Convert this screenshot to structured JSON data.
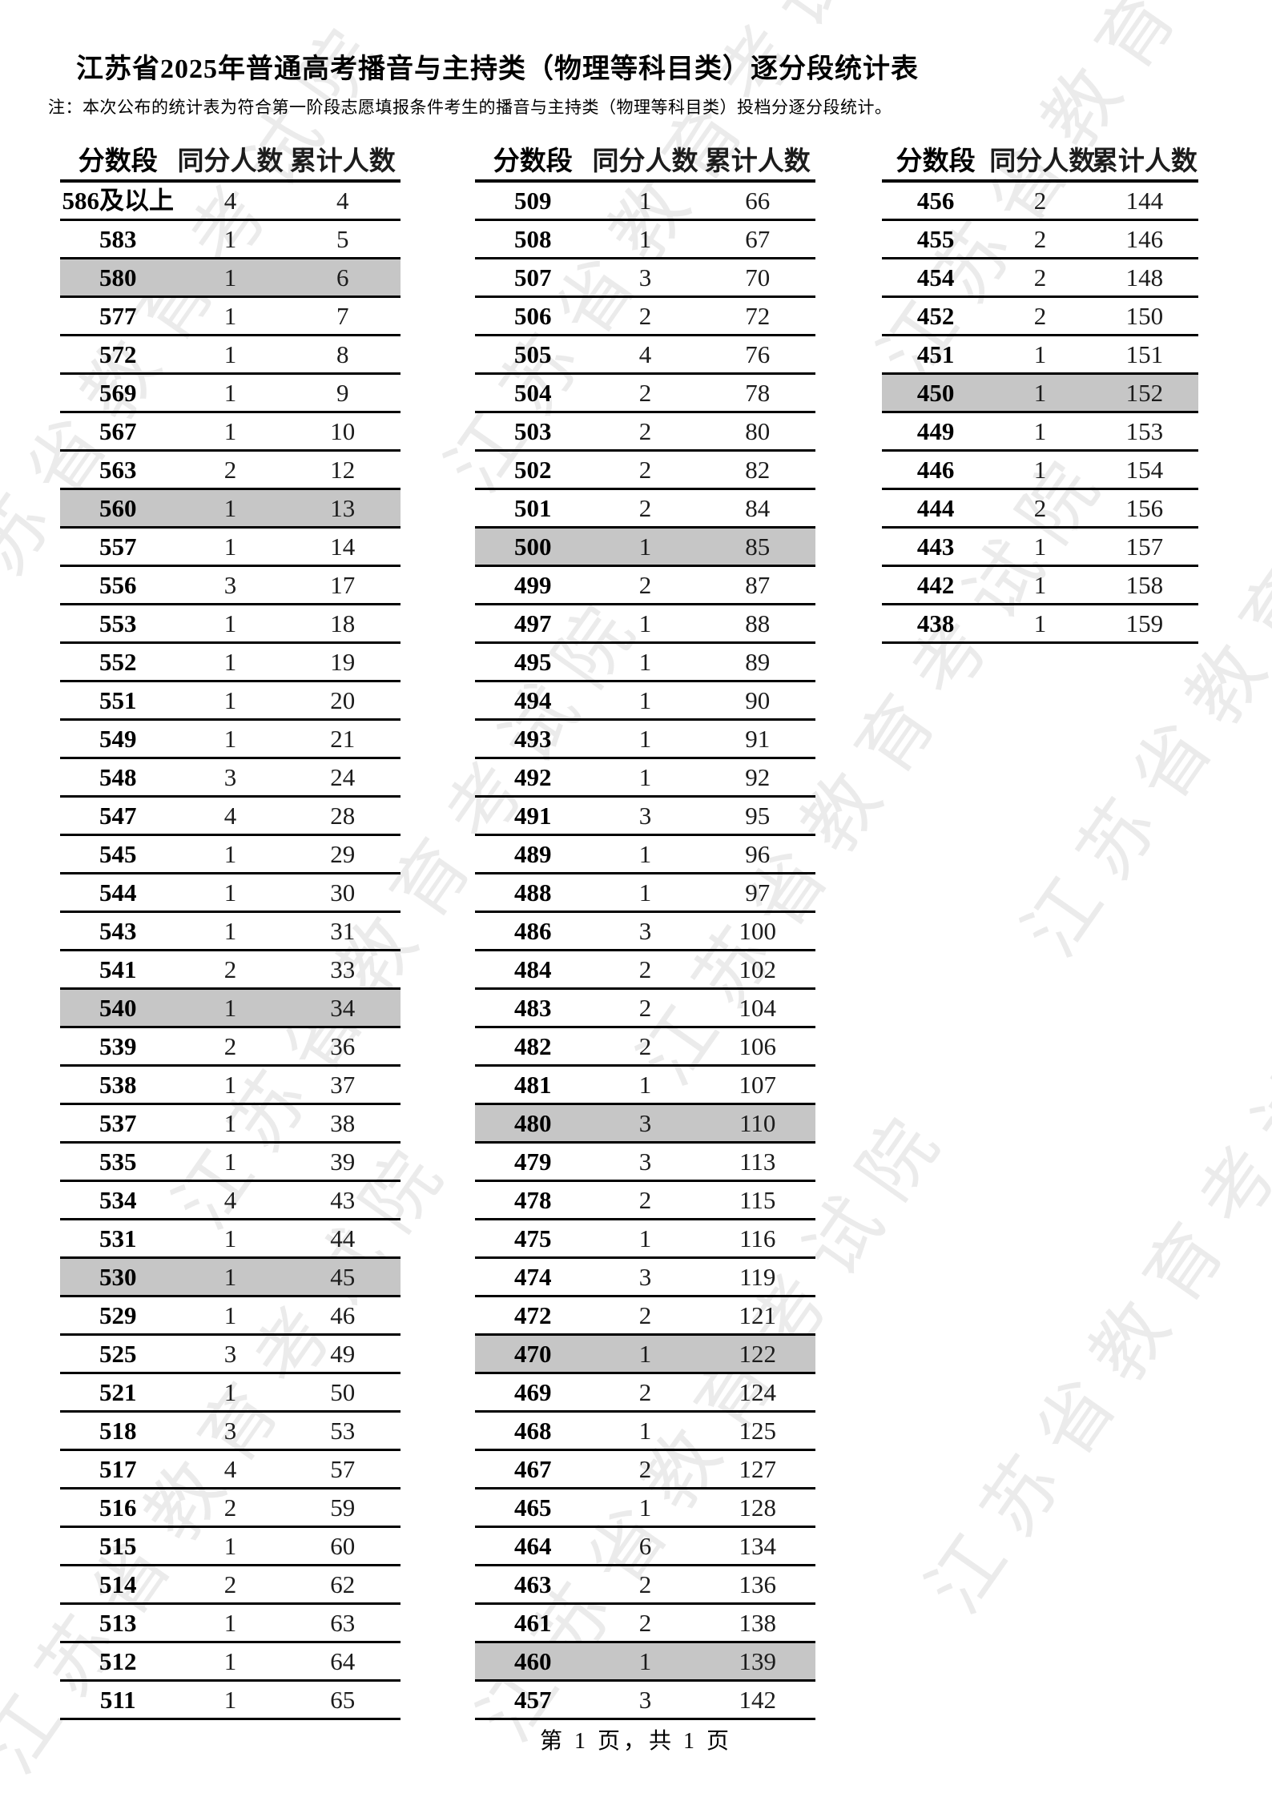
{
  "page": {
    "title": "江苏省2025年普通高考播音与主持类（物理等科目类）逐分段统计表",
    "note": "注：本次公布的统计表为符合第一阶段志愿填报条件考生的播音与主持类（物理等科目类）投档分逐分段统计。",
    "footer": "第 1 页，共 1 页",
    "watermark": "江苏省教育考试院"
  },
  "highlight_color": "#c6c6c6",
  "columns": [
    "分数段",
    "同分人数",
    "累计人数"
  ],
  "tables": [
    {
      "rows": [
        [
          "586及以上",
          "4",
          "4",
          0
        ],
        [
          "583",
          "1",
          "5",
          0
        ],
        [
          "580",
          "1",
          "6",
          1
        ],
        [
          "577",
          "1",
          "7",
          0
        ],
        [
          "572",
          "1",
          "8",
          0
        ],
        [
          "569",
          "1",
          "9",
          0
        ],
        [
          "567",
          "1",
          "10",
          0
        ],
        [
          "563",
          "2",
          "12",
          0
        ],
        [
          "560",
          "1",
          "13",
          1
        ],
        [
          "557",
          "1",
          "14",
          0
        ],
        [
          "556",
          "3",
          "17",
          0
        ],
        [
          "553",
          "1",
          "18",
          0
        ],
        [
          "552",
          "1",
          "19",
          0
        ],
        [
          "551",
          "1",
          "20",
          0
        ],
        [
          "549",
          "1",
          "21",
          0
        ],
        [
          "548",
          "3",
          "24",
          0
        ],
        [
          "547",
          "4",
          "28",
          0
        ],
        [
          "545",
          "1",
          "29",
          0
        ],
        [
          "544",
          "1",
          "30",
          0
        ],
        [
          "543",
          "1",
          "31",
          0
        ],
        [
          "541",
          "2",
          "33",
          0
        ],
        [
          "540",
          "1",
          "34",
          1
        ],
        [
          "539",
          "2",
          "36",
          0
        ],
        [
          "538",
          "1",
          "37",
          0
        ],
        [
          "537",
          "1",
          "38",
          0
        ],
        [
          "535",
          "1",
          "39",
          0
        ],
        [
          "534",
          "4",
          "43",
          0
        ],
        [
          "531",
          "1",
          "44",
          0
        ],
        [
          "530",
          "1",
          "45",
          1
        ],
        [
          "529",
          "1",
          "46",
          0
        ],
        [
          "525",
          "3",
          "49",
          0
        ],
        [
          "521",
          "1",
          "50",
          0
        ],
        [
          "518",
          "3",
          "53",
          0
        ],
        [
          "517",
          "4",
          "57",
          0
        ],
        [
          "516",
          "2",
          "59",
          0
        ],
        [
          "515",
          "1",
          "60",
          0
        ],
        [
          "514",
          "2",
          "62",
          0
        ],
        [
          "513",
          "1",
          "63",
          0
        ],
        [
          "512",
          "1",
          "64",
          0
        ],
        [
          "511",
          "1",
          "65",
          0
        ]
      ]
    },
    {
      "rows": [
        [
          "509",
          "1",
          "66",
          0
        ],
        [
          "508",
          "1",
          "67",
          0
        ],
        [
          "507",
          "3",
          "70",
          0
        ],
        [
          "506",
          "2",
          "72",
          0
        ],
        [
          "505",
          "4",
          "76",
          0
        ],
        [
          "504",
          "2",
          "78",
          0
        ],
        [
          "503",
          "2",
          "80",
          0
        ],
        [
          "502",
          "2",
          "82",
          0
        ],
        [
          "501",
          "2",
          "84",
          0
        ],
        [
          "500",
          "1",
          "85",
          1
        ],
        [
          "499",
          "2",
          "87",
          0
        ],
        [
          "497",
          "1",
          "88",
          0
        ],
        [
          "495",
          "1",
          "89",
          0
        ],
        [
          "494",
          "1",
          "90",
          0
        ],
        [
          "493",
          "1",
          "91",
          0
        ],
        [
          "492",
          "1",
          "92",
          0
        ],
        [
          "491",
          "3",
          "95",
          0
        ],
        [
          "489",
          "1",
          "96",
          0
        ],
        [
          "488",
          "1",
          "97",
          0
        ],
        [
          "486",
          "3",
          "100",
          0
        ],
        [
          "484",
          "2",
          "102",
          0
        ],
        [
          "483",
          "2",
          "104",
          0
        ],
        [
          "482",
          "2",
          "106",
          0
        ],
        [
          "481",
          "1",
          "107",
          0
        ],
        [
          "480",
          "3",
          "110",
          1
        ],
        [
          "479",
          "3",
          "113",
          0
        ],
        [
          "478",
          "2",
          "115",
          0
        ],
        [
          "475",
          "1",
          "116",
          0
        ],
        [
          "474",
          "3",
          "119",
          0
        ],
        [
          "472",
          "2",
          "121",
          0
        ],
        [
          "470",
          "1",
          "122",
          1
        ],
        [
          "469",
          "2",
          "124",
          0
        ],
        [
          "468",
          "1",
          "125",
          0
        ],
        [
          "467",
          "2",
          "127",
          0
        ],
        [
          "465",
          "1",
          "128",
          0
        ],
        [
          "464",
          "6",
          "134",
          0
        ],
        [
          "463",
          "2",
          "136",
          0
        ],
        [
          "461",
          "2",
          "138",
          0
        ],
        [
          "460",
          "1",
          "139",
          1
        ],
        [
          "457",
          "3",
          "142",
          0
        ]
      ]
    },
    {
      "rows": [
        [
          "456",
          "2",
          "144",
          0
        ],
        [
          "455",
          "2",
          "146",
          0
        ],
        [
          "454",
          "2",
          "148",
          0
        ],
        [
          "452",
          "2",
          "150",
          0
        ],
        [
          "451",
          "1",
          "151",
          0
        ],
        [
          "450",
          "1",
          "152",
          1
        ],
        [
          "449",
          "1",
          "153",
          0
        ],
        [
          "446",
          "1",
          "154",
          0
        ],
        [
          "444",
          "2",
          "156",
          0
        ],
        [
          "443",
          "1",
          "157",
          0
        ],
        [
          "442",
          "1",
          "158",
          0
        ],
        [
          "438",
          "1",
          "159",
          0
        ]
      ]
    }
  ]
}
